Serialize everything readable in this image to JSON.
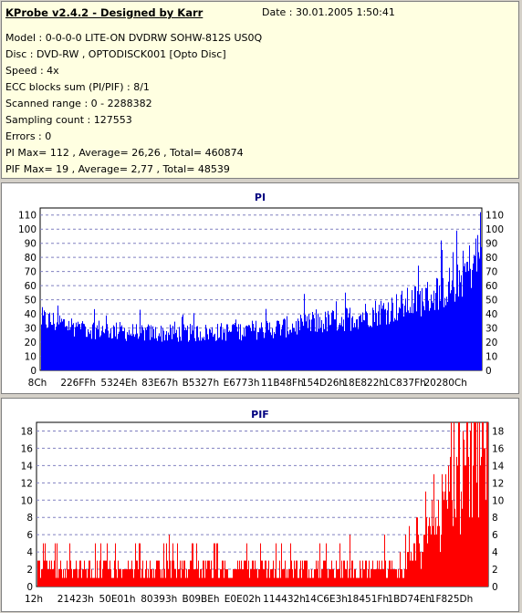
{
  "header": {
    "title": "KProbe v2.4.2 - Designed by Karr",
    "date": "Date : 30.01.2005 1:50:41"
  },
  "info_lines": [
    "Model : 0-0-0-0 LITE-ON DVDRW SOHW-812S  US0Q",
    "Disc : DVD-RW , OPTODISCK001 [Opto Disc]",
    "Speed : 4x",
    "ECC blocks sum (PI/PIF) : 8/1",
    "Scanned range : 0 - 2288382",
    "Sampling count : 127553",
    "Errors : 0",
    "PI Max= 112 , Average= 26,26 , Total= 460874",
    "PIF Max= 19 , Average= 2,77 , Total= 48539"
  ],
  "chart_data": [
    {
      "type": "bar",
      "title": "PI",
      "color": "#0000ff",
      "ylim": [
        0,
        115
      ],
      "yticks": [
        0,
        10,
        20,
        30,
        40,
        50,
        60,
        70,
        80,
        90,
        100,
        110
      ],
      "xtick_labels": [
        "8Ch",
        "226FFh",
        "5324Eh",
        "83E67h",
        "B5327h",
        "E6773h",
        "11B48Fh",
        "154D26h",
        "18E822h",
        "1C837Fh",
        "20280Ch"
      ],
      "grid": true,
      "profile": [
        [
          0,
          36
        ],
        [
          0.1,
          30
        ],
        [
          0.2,
          27
        ],
        [
          0.3,
          26
        ],
        [
          0.4,
          27
        ],
        [
          0.5,
          29
        ],
        [
          0.6,
          32
        ],
        [
          0.7,
          37
        ],
        [
          0.8,
          44
        ],
        [
          0.88,
          52
        ],
        [
          0.93,
          60
        ],
        [
          0.97,
          72
        ],
        [
          1.0,
          85
        ]
      ],
      "max": 112
    },
    {
      "type": "bar",
      "title": "PIF",
      "color": "#ff0000",
      "ylim": [
        0,
        19
      ],
      "yticks": [
        0,
        2,
        4,
        6,
        8,
        10,
        12,
        14,
        16,
        18
      ],
      "xtick_labels": [
        "12h",
        "21423h",
        "50E01h",
        "80393h",
        "B09BEh",
        "E0E02h",
        "114432h",
        "14C6E3h",
        "18451Fh",
        "1BD74Eh",
        "1F825Dh"
      ],
      "grid": true,
      "profile": [
        [
          0,
          2.2
        ],
        [
          0.78,
          2.2
        ],
        [
          0.82,
          2.8
        ],
        [
          0.85,
          4.5
        ],
        [
          0.88,
          7
        ],
        [
          0.91,
          10
        ],
        [
          0.94,
          13
        ],
        [
          0.97,
          15.5
        ],
        [
          1.0,
          17
        ]
      ],
      "max": 19
    }
  ]
}
